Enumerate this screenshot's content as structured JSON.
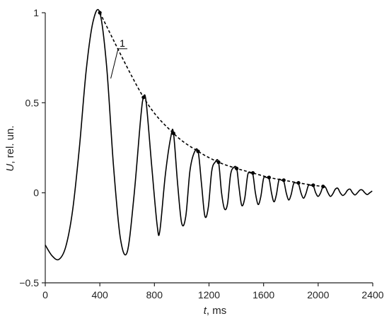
{
  "chart_data": {
    "type": "line",
    "title": "",
    "xlabel_var": "t",
    "xlabel_unit": ", ms",
    "ylabel_var": "U",
    "ylabel_unit": ", rel. un.",
    "xlim": [
      0,
      2400
    ],
    "ylim": [
      -0.5,
      1
    ],
    "xticks": [
      0,
      400,
      800,
      1200,
      1600,
      2000,
      2400
    ],
    "yticks": [
      -0.5,
      0,
      0.5,
      1
    ],
    "ytick_labels": [
      "−0.5",
      "0",
      "0.5",
      "1"
    ],
    "grid": false,
    "series": [
      {
        "kind": "signal",
        "x": [
          0,
          50,
          100,
          150,
          200,
          250,
          300,
          350,
          400,
          450,
          500,
          550,
          600,
          650,
          700,
          720,
          740,
          780,
          820,
          840,
          880,
          920,
          940,
          970,
          1000,
          1030,
          1060,
          1090,
          1120,
          1145,
          1170,
          1195,
          1220,
          1245,
          1270,
          1292,
          1314,
          1336,
          1358,
          1380,
          1403,
          1420,
          1440,
          1462,
          1484,
          1503,
          1522,
          1540,
          1560,
          1580,
          1600,
          1620,
          1640,
          1658,
          1676,
          1694,
          1712,
          1730,
          1748,
          1766,
          1784,
          1802,
          1820,
          1838,
          1856,
          1874,
          1892,
          1910,
          1928,
          1946,
          1964,
          1982,
          2000,
          2018,
          2036,
          2054,
          2072,
          2090,
          2108,
          2126,
          2144,
          2162,
          2180,
          2198,
          2216,
          2234,
          2252,
          2270,
          2288,
          2306,
          2324,
          2342,
          2360,
          2378,
          2396
        ],
        "y": [
          -0.29,
          -0.35,
          -0.37,
          -0.3,
          -0.1,
          0.25,
          0.68,
          0.95,
          1.0,
          0.7,
          0.15,
          -0.25,
          -0.33,
          -0.02,
          0.42,
          0.53,
          0.5,
          0.15,
          -0.18,
          -0.21,
          0.1,
          0.31,
          0.33,
          0.05,
          -0.17,
          -0.13,
          0.12,
          0.22,
          0.23,
          0.05,
          -0.13,
          -0.08,
          0.12,
          0.17,
          0.17,
          0.0,
          -0.09,
          -0.06,
          0.1,
          0.14,
          0.135,
          0.03,
          -0.07,
          -0.03,
          0.1,
          0.11,
          0.1,
          0.0,
          -0.065,
          -0.02,
          0.08,
          0.085,
          0.08,
          0.0,
          -0.05,
          -0.01,
          0.07,
          0.07,
          0.065,
          0.0,
          -0.04,
          -0.01,
          0.05,
          0.055,
          0.05,
          0.0,
          -0.03,
          -0.005,
          0.04,
          0.042,
          0.04,
          0.0,
          -0.02,
          0.0,
          0.035,
          0.03,
          0.0,
          -0.02,
          -0.005,
          0.02,
          0.025,
          0.0,
          -0.015,
          -0.005,
          0.015,
          0.02,
          0.0,
          -0.012,
          0.0,
          0.015,
          0.015,
          0.0,
          -0.01,
          0.0,
          0.01
        ]
      },
      {
        "kind": "envelope",
        "x": [
          400,
          720,
          940,
          1120,
          1270,
          1403,
          1522,
          1640,
          1748,
          1856,
          1964,
          2036
        ],
        "y": [
          1.0,
          0.53,
          0.33,
          0.23,
          0.17,
          0.135,
          0.11,
          0.085,
          0.07,
          0.055,
          0.042,
          0.035
        ]
      }
    ],
    "annotations": [
      {
        "label": "1",
        "target_x": 480,
        "target_y": 0.635,
        "text_x": 560,
        "text_y": 0.8
      }
    ]
  }
}
